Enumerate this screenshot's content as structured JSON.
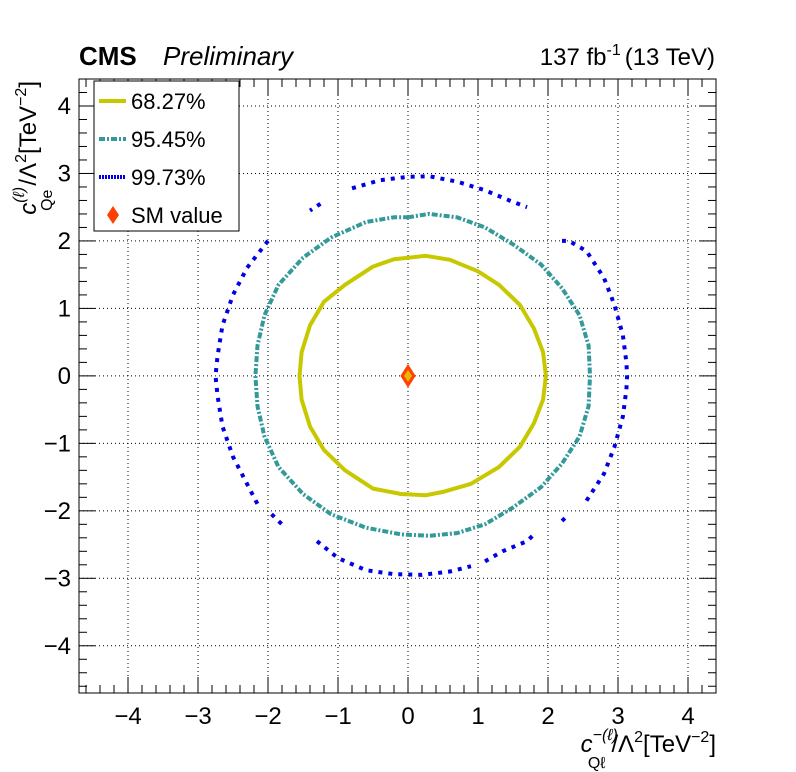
{
  "header": {
    "experiment": "CMS",
    "status": "Preliminary",
    "lumi": "137 fb",
    "lumi_exp": "-1",
    "energy": "(13 TeV)"
  },
  "axes": {
    "x_title": {
      "var": "c",
      "sup": "−(ℓ)",
      "sub": "Qℓ",
      "rest": "/Λ",
      "sq": "2",
      "unit": "[TeV",
      "unit_exp": "−2",
      "close": "]"
    },
    "y_title": {
      "var": "c",
      "sup": "(ℓ)",
      "sub": "Qe",
      "rest": "/Λ",
      "sq": "2",
      "unit": "[TeV",
      "unit_exp": "−2",
      "close": "]"
    }
  },
  "legend": {
    "placement": "top-left",
    "items": [
      {
        "label": "68.27%",
        "color": "#c8c800",
        "style": "solid"
      },
      {
        "label": "95.45%",
        "color": "#339999",
        "style": "dash-dot"
      },
      {
        "label": "99.73%",
        "color": "#0000e6",
        "style": "dotted"
      },
      {
        "label": "SM value",
        "color": "#ff4000",
        "style": "diamond"
      }
    ]
  },
  "chart_data": {
    "type": "contour",
    "xlim": [
      -4.7,
      4.4
    ],
    "ylim": [
      -4.7,
      4.4
    ],
    "x_ticks": [
      -4,
      -3,
      -2,
      -1,
      0,
      1,
      2,
      3,
      4
    ],
    "y_ticks": [
      -4,
      -3,
      -2,
      -1,
      0,
      1,
      2,
      3,
      4
    ],
    "x_tick_labels": [
      "−4",
      "−3",
      "−2",
      "−1",
      "0",
      "1",
      "2",
      "3",
      "4"
    ],
    "y_tick_labels": [
      "−4",
      "−3",
      "−2",
      "−1",
      "0",
      "1",
      "2",
      "3",
      "4"
    ],
    "grid": true,
    "series": [
      {
        "name": "68.27%",
        "color": "#c8c800",
        "style": "solid",
        "points": [
          [
            0.0,
            1.75
          ],
          [
            0.25,
            1.78
          ],
          [
            0.6,
            1.72
          ],
          [
            1.0,
            1.55
          ],
          [
            1.3,
            1.35
          ],
          [
            1.6,
            1.05
          ],
          [
            1.8,
            0.7
          ],
          [
            1.93,
            0.35
          ],
          [
            1.97,
            0.0
          ],
          [
            1.93,
            -0.35
          ],
          [
            1.8,
            -0.7
          ],
          [
            1.6,
            -1.05
          ],
          [
            1.3,
            -1.35
          ],
          [
            0.9,
            -1.6
          ],
          [
            0.5,
            -1.72
          ],
          [
            0.25,
            -1.77
          ],
          [
            -0.1,
            -1.75
          ],
          [
            -0.5,
            -1.67
          ],
          [
            -0.9,
            -1.4
          ],
          [
            -1.2,
            -1.1
          ],
          [
            -1.4,
            -0.75
          ],
          [
            -1.52,
            -0.35
          ],
          [
            -1.55,
            0.0
          ],
          [
            -1.52,
            0.35
          ],
          [
            -1.4,
            0.75
          ],
          [
            -1.2,
            1.1
          ],
          [
            -0.9,
            1.35
          ],
          [
            -0.5,
            1.62
          ],
          [
            -0.2,
            1.73
          ],
          [
            0.0,
            1.75
          ]
        ]
      },
      {
        "name": "95.45%",
        "color": "#339999",
        "style": "dash-dot",
        "points": [
          [
            0.0,
            2.35
          ],
          [
            0.3,
            2.4
          ],
          [
            0.7,
            2.35
          ],
          [
            1.1,
            2.2
          ],
          [
            1.5,
            1.95
          ],
          [
            1.9,
            1.65
          ],
          [
            2.2,
            1.3
          ],
          [
            2.45,
            0.9
          ],
          [
            2.58,
            0.45
          ],
          [
            2.6,
            0.0
          ],
          [
            2.58,
            -0.45
          ],
          [
            2.45,
            -0.9
          ],
          [
            2.2,
            -1.3
          ],
          [
            1.9,
            -1.65
          ],
          [
            1.5,
            -1.95
          ],
          [
            1.1,
            -2.2
          ],
          [
            0.7,
            -2.33
          ],
          [
            0.3,
            -2.37
          ],
          [
            -0.1,
            -2.35
          ],
          [
            -0.6,
            -2.25
          ],
          [
            -1.1,
            -2.05
          ],
          [
            -1.5,
            -1.75
          ],
          [
            -1.85,
            -1.35
          ],
          [
            -2.05,
            -0.9
          ],
          [
            -2.15,
            -0.45
          ],
          [
            -2.18,
            0.0
          ],
          [
            -2.15,
            0.45
          ],
          [
            -2.05,
            0.9
          ],
          [
            -1.85,
            1.35
          ],
          [
            -1.5,
            1.75
          ],
          [
            -1.1,
            2.05
          ],
          [
            -0.6,
            2.28
          ],
          [
            -0.2,
            2.35
          ],
          [
            0.0,
            2.35
          ]
        ]
      },
      {
        "name": "99.73%",
        "color": "#0000e6",
        "style": "dotted",
        "segments": [
          [
            [
              -0.8,
              2.78
            ],
            [
              -0.4,
              2.9
            ],
            [
              0.0,
              2.95
            ],
            [
              0.3,
              2.96
            ],
            [
              0.7,
              2.88
            ],
            [
              1.1,
              2.75
            ],
            [
              1.45,
              2.6
            ],
            [
              1.7,
              2.5
            ]
          ],
          [
            [
              -1.25,
              2.55
            ],
            [
              -1.4,
              2.45
            ]
          ],
          [
            [
              -2.0,
              2.0
            ],
            [
              -2.3,
              1.6
            ],
            [
              -2.5,
              1.2
            ],
            [
              -2.65,
              0.75
            ],
            [
              -2.72,
              0.3
            ],
            [
              -2.75,
              0.0
            ],
            [
              -2.72,
              -0.3
            ],
            [
              -2.65,
              -0.75
            ],
            [
              -2.5,
              -1.2
            ],
            [
              -2.3,
              -1.6
            ],
            [
              -2.15,
              -1.9
            ]
          ],
          [
            [
              -1.95,
              -2.05
            ],
            [
              -1.75,
              -2.25
            ]
          ],
          [
            [
              -1.3,
              -2.45
            ],
            [
              -1.0,
              -2.7
            ],
            [
              -0.6,
              -2.88
            ],
            [
              -0.2,
              -2.94
            ],
            [
              0.2,
              -2.95
            ],
            [
              0.6,
              -2.9
            ],
            [
              0.9,
              -2.82
            ]
          ],
          [
            [
              1.1,
              -2.75
            ],
            [
              1.35,
              -2.6
            ],
            [
              1.7,
              -2.45
            ],
            [
              1.8,
              -2.35
            ]
          ],
          [
            [
              2.2,
              -2.15
            ],
            [
              2.3,
              -2.05
            ]
          ],
          [
            [
              2.55,
              -1.85
            ],
            [
              2.8,
              -1.45
            ],
            [
              2.95,
              -1.05
            ],
            [
              3.07,
              -0.6
            ],
            [
              3.12,
              -0.2
            ],
            [
              3.13,
              0.0
            ],
            [
              3.12,
              0.2
            ],
            [
              3.07,
              0.6
            ],
            [
              2.95,
              1.05
            ],
            [
              2.8,
              1.45
            ],
            [
              2.55,
              1.85
            ],
            [
              2.3,
              2.0
            ],
            [
              2.2,
              2.0
            ]
          ]
        ]
      }
    ],
    "sm_point": {
      "name": "SM value",
      "x": 0,
      "y": 0
    }
  }
}
